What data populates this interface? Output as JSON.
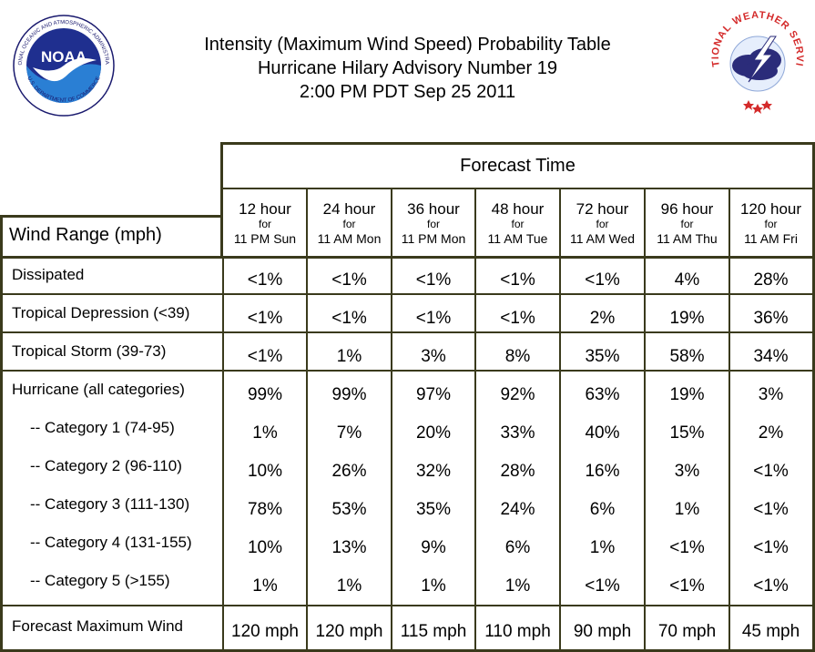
{
  "title": {
    "line1": "Intensity (Maximum Wind Speed) Probability Table",
    "line2": "Hurricane Hilary Advisory Number 19",
    "line3": "2:00 PM PDT Sep 25 2011"
  },
  "logos": {
    "noaa": {
      "icon": "noaa-logo",
      "text": "NOAA",
      "ring_top": "NATIONAL OCEANIC AND ATMOSPHERIC ADMINISTRATION",
      "ring_bottom": "U.S. DEPARTMENT OF COMMERCE"
    },
    "nws": {
      "icon": "nws-logo",
      "ring": "NATIONAL WEATHER SERVICE"
    }
  },
  "table": {
    "forecast_time_label": "Forecast Time",
    "wind_range_label": "Wind Range (mph)",
    "for_label": "for",
    "columns": [
      {
        "hour": "12 hour",
        "time": "11 PM Sun"
      },
      {
        "hour": "24 hour",
        "time": "11 AM Mon"
      },
      {
        "hour": "36 hour",
        "time": "11 PM Mon"
      },
      {
        "hour": "48 hour",
        "time": "11 AM Tue"
      },
      {
        "hour": "72 hour",
        "time": "11 AM Wed"
      },
      {
        "hour": "96 hour",
        "time": "11 AM Thu"
      },
      {
        "hour": "120 hour",
        "time": "11 AM Fri"
      }
    ],
    "rows": [
      {
        "label": "Dissipated",
        "values": [
          "<1%",
          "<1%",
          "<1%",
          "<1%",
          "<1%",
          "4%",
          "28%"
        ]
      },
      {
        "label": "Tropical Depression (<39)",
        "values": [
          "<1%",
          "<1%",
          "<1%",
          "<1%",
          "2%",
          "19%",
          "36%"
        ]
      },
      {
        "label": "Tropical Storm (39-73)",
        "values": [
          "<1%",
          "1%",
          "3%",
          "8%",
          "35%",
          "58%",
          "34%"
        ]
      },
      {
        "label": "Hurricane (all categories)",
        "values": [
          "99%",
          "99%",
          "97%",
          "92%",
          "63%",
          "19%",
          "3%"
        ]
      },
      {
        "label": "-- Category 1 (74-95)",
        "values": [
          "1%",
          "7%",
          "20%",
          "33%",
          "40%",
          "15%",
          "2%"
        ]
      },
      {
        "label": "-- Category 2 (96-110)",
        "values": [
          "10%",
          "26%",
          "32%",
          "28%",
          "16%",
          "3%",
          "<1%"
        ]
      },
      {
        "label": "-- Category 3 (111-130)",
        "values": [
          "78%",
          "53%",
          "35%",
          "24%",
          "6%",
          "1%",
          "<1%"
        ]
      },
      {
        "label": "-- Category 4 (131-155)",
        "values": [
          "10%",
          "13%",
          "9%",
          "6%",
          "1%",
          "<1%",
          "<1%"
        ]
      },
      {
        "label": "-- Category 5 (>155)",
        "values": [
          "1%",
          "1%",
          "1%",
          "1%",
          "<1%",
          "<1%",
          "<1%"
        ]
      }
    ],
    "max_wind": {
      "label": "Forecast Maximum Wind",
      "values": [
        "120 mph",
        "120 mph",
        "115 mph",
        "110 mph",
        "90 mph",
        "70 mph",
        "45 mph"
      ]
    }
  }
}
